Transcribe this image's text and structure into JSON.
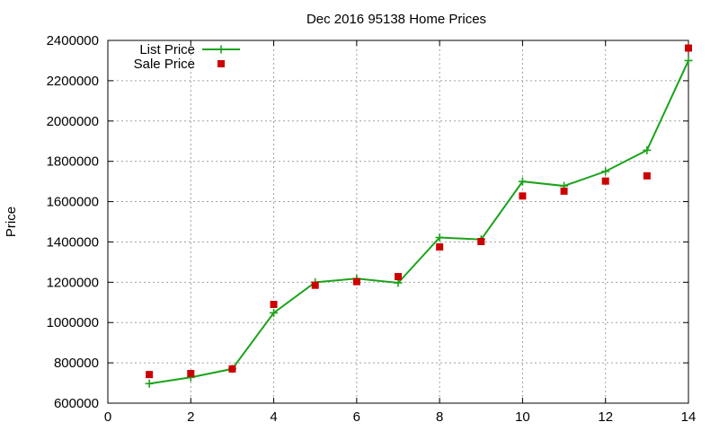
{
  "chart_data": {
    "type": "line",
    "title": "Dec 2016 95138 Home Prices",
    "xlabel": "",
    "ylabel": "Price",
    "xlim": [
      0,
      14
    ],
    "ylim": [
      600000,
      2400000
    ],
    "x_ticks": [
      "0",
      "2",
      "4",
      "6",
      "8",
      "10",
      "12",
      "14"
    ],
    "y_ticks": [
      "600000",
      "800000",
      "1000000",
      "1200000",
      "1400000",
      "1600000",
      "1800000",
      "2000000",
      "2200000",
      "2400000"
    ],
    "grid": true,
    "legend_position": "top-left",
    "series": [
      {
        "name": "List Price",
        "style": "line+cross",
        "color": "#1aa31a",
        "x": [
          1,
          2,
          3,
          4,
          5,
          6,
          7,
          8,
          9,
          10,
          11,
          12,
          13,
          14
        ],
        "y": [
          697000,
          728000,
          770000,
          1048000,
          1200000,
          1218000,
          1197000,
          1422000,
          1412000,
          1700000,
          1678000,
          1750000,
          1855000,
          2300000
        ]
      },
      {
        "name": "Sale Price",
        "style": "square",
        "color": "#cc0000",
        "x": [
          1,
          2,
          3,
          4,
          5,
          6,
          7,
          8,
          9,
          10,
          11,
          12,
          13,
          14
        ],
        "y": [
          742000,
          747000,
          770000,
          1090000,
          1185000,
          1203000,
          1228000,
          1375000,
          1402000,
          1628000,
          1652000,
          1702000,
          1728000,
          2362000
        ]
      }
    ]
  }
}
